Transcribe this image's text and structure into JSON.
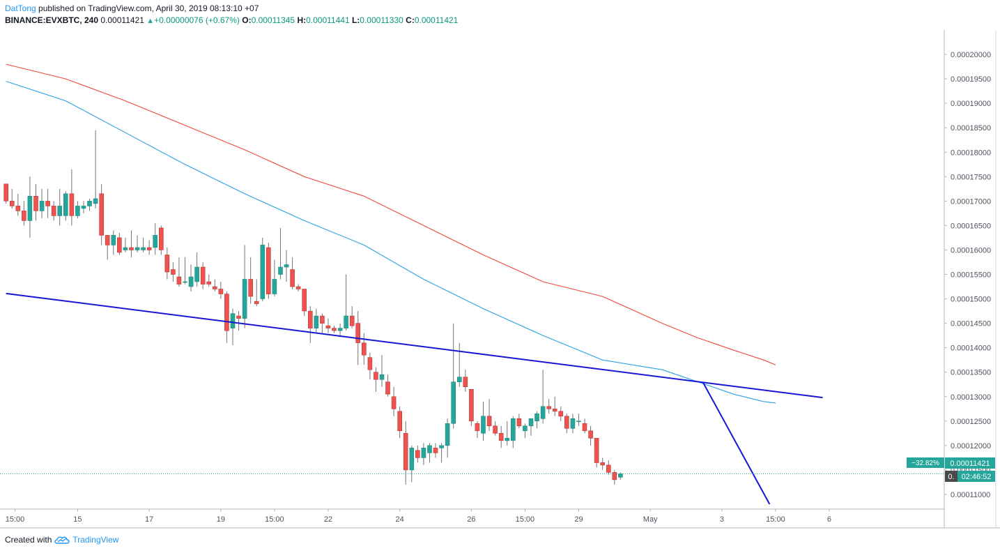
{
  "header": {
    "author": "DatTong",
    "published_text": "published on TradingView.com, April 30, 2019 08:13:10 +07",
    "symbol": "BINANCE:EVXBTC, 240",
    "last_price": "0.00011421",
    "change": "+0.00000076 (+0.67%)",
    "open_label": "O:",
    "open": "0.00011345",
    "high_label": "H:",
    "high": "0.00011441",
    "low_label": "L:",
    "low": "0.00011330",
    "close_label": "C:",
    "close": "0.00011421"
  },
  "price_badges": {
    "percent": "−32.82%",
    "price": "0.00011421",
    "countdown_prefix": "0.",
    "countdown": "02:46:52"
  },
  "footer": {
    "created_with": "Created with",
    "brand": "TradingView"
  },
  "colors": {
    "up": "#26a69a",
    "down": "#ef5350",
    "ma_fast": "#29a0e6",
    "ma_slow": "#f0483c",
    "trendline": "#1515d6",
    "price_line": "#26a69a",
    "countdown_bg": "#4a4a4a"
  },
  "icons": {
    "logo": "tradingview-cloud-icon",
    "change_arrow": "up-triangle-icon"
  },
  "chart_data": {
    "type": "candlestick",
    "timeframe": "240",
    "ylim": [
      0.000107,
      0.000205
    ],
    "y_ticks": [
      "0.00011000",
      "0.00011500",
      "0.00012000",
      "0.00012500",
      "0.00013000",
      "0.00013500",
      "0.00014000",
      "0.00014500",
      "0.00015000",
      "0.00015500",
      "0.00016000",
      "0.00016500",
      "0.00017000",
      "0.00017500",
      "0.00018000",
      "0.00018500",
      "0.00019000",
      "0.00019500",
      "0.00020000"
    ],
    "x_ticks": [
      {
        "label": "15:00",
        "bar": 1.5
      },
      {
        "label": "15",
        "bar": 12
      },
      {
        "label": "17",
        "bar": 24
      },
      {
        "label": "19",
        "bar": 36
      },
      {
        "label": "15:00",
        "bar": 45
      },
      {
        "label": "22",
        "bar": 54
      },
      {
        "label": "24",
        "bar": 66
      },
      {
        "label": "26",
        "bar": 78
      },
      {
        "label": "15:00",
        "bar": 87
      },
      {
        "label": "29",
        "bar": 96
      },
      {
        "label": "May",
        "bar": 108
      },
      {
        "label": "3",
        "bar": 120
      },
      {
        "label": "15:00",
        "bar": 129
      },
      {
        "label": "6",
        "bar": 138
      }
    ],
    "candles": [
      [
        0.0001735,
        0.0001735,
        0.0001695,
        0.00017
      ],
      [
        0.00017,
        0.0001725,
        0.0001685,
        0.000169
      ],
      [
        0.000169,
        0.0001715,
        0.000167,
        0.000168
      ],
      [
        0.000168,
        0.00017,
        0.000165,
        0.000166
      ],
      [
        0.000166,
        0.000175,
        0.0001625,
        0.000171
      ],
      [
        0.000171,
        0.0001735,
        0.000166,
        0.000168
      ],
      [
        0.000168,
        0.0001725,
        0.0001665,
        0.00017
      ],
      [
        0.00017,
        0.0001725,
        0.0001665,
        0.000169
      ],
      [
        0.000169,
        0.00017,
        0.000166,
        0.000167
      ],
      [
        0.000167,
        0.0001725,
        0.000165,
        0.000169
      ],
      [
        0.000167,
        0.000172,
        0.000166,
        0.0001715
      ],
      [
        0.0001715,
        0.0001765,
        0.000165,
        0.000167
      ],
      [
        0.000167,
        0.00017,
        0.0001665,
        0.000169
      ],
      [
        0.0001685,
        0.00017,
        0.0001675,
        0.000169
      ],
      [
        0.000169,
        0.0001705,
        0.000168,
        0.00017
      ],
      [
        0.0001695,
        0.0001845,
        0.0001685,
        0.0001705
      ],
      [
        0.0001715,
        0.0001735,
        0.000161,
        0.000163
      ],
      [
        0.000163,
        0.000163,
        0.000158,
        0.000161
      ],
      [
        0.000161,
        0.000164,
        0.000159,
        0.000163
      ],
      [
        0.0001625,
        0.0001635,
        0.000159,
        0.0001595
      ],
      [
        0.00016,
        0.0001625,
        0.0001595,
        0.0001605
      ],
      [
        0.0001605,
        0.000164,
        0.0001585,
        0.00016
      ],
      [
        0.00016,
        0.000163,
        0.0001595,
        0.0001605
      ],
      [
        0.00016,
        0.0001625,
        0.0001595,
        0.0001605
      ],
      [
        0.0001605,
        0.000162,
        0.000159,
        0.00016
      ],
      [
        0.0001605,
        0.0001655,
        0.000159,
        0.000163
      ],
      [
        0.0001645,
        0.000165,
        0.000159,
        0.00016
      ],
      [
        0.000159,
        0.0001605,
        0.000154,
        0.0001555
      ],
      [
        0.000156,
        0.0001575,
        0.0001535,
        0.000155
      ],
      [
        0.0001545,
        0.0001585,
        0.0001525,
        0.000153
      ],
      [
        0.0001535,
        0.0001585,
        0.000153,
        0.0001535
      ],
      [
        0.0001525,
        0.000157,
        0.0001515,
        0.0001545
      ],
      [
        0.0001535,
        0.0001595,
        0.0001525,
        0.0001565
      ],
      [
        0.0001565,
        0.0001575,
        0.000152,
        0.000153
      ],
      [
        0.0001535,
        0.000155,
        0.0001525,
        0.000153
      ],
      [
        0.0001525,
        0.000154,
        0.0001515,
        0.000152
      ],
      [
        0.000152,
        0.0001535,
        0.00015,
        0.000151
      ],
      [
        0.000151,
        0.0001515,
        0.000141,
        0.0001435
      ],
      [
        0.000144,
        0.000148,
        0.0001405,
        0.000147
      ],
      [
        0.0001465,
        0.0001475,
        0.0001435,
        0.000146
      ],
      [
        0.000146,
        0.000161,
        0.000144,
        0.000154
      ],
      [
        0.000154,
        0.0001585,
        0.000149,
        0.0001505
      ],
      [
        0.0001495,
        0.000154,
        0.0001485,
        0.000149
      ],
      [
        0.00015,
        0.0001625,
        0.0001495,
        0.000161
      ],
      [
        0.0001605,
        0.0001615,
        0.00015,
        0.000151
      ],
      [
        0.000151,
        0.000158,
        0.0001505,
        0.000154
      ],
      [
        0.000155,
        0.0001645,
        0.000154,
        0.0001565
      ],
      [
        0.0001565,
        0.00016,
        0.0001535,
        0.000157
      ],
      [
        0.000156,
        0.0001585,
        0.000152,
        0.0001525
      ],
      [
        0.0001525,
        0.000153,
        0.0001515,
        0.000152
      ],
      [
        0.000152,
        0.000152,
        0.0001465,
        0.0001475
      ],
      [
        0.0001475,
        0.0001485,
        0.000141,
        0.000144
      ],
      [
        0.000144,
        0.000148,
        0.000143,
        0.0001465
      ],
      [
        0.0001465,
        0.000147,
        0.000143,
        0.000145
      ],
      [
        0.0001445,
        0.000146,
        0.000143,
        0.000144
      ],
      [
        0.000144,
        0.0001445,
        0.000143,
        0.0001435
      ],
      [
        0.0001435,
        0.000145,
        0.0001425,
        0.000144
      ],
      [
        0.000144,
        0.000155,
        0.0001435,
        0.0001465
      ],
      [
        0.0001465,
        0.0001485,
        0.000144,
        0.0001445
      ],
      [
        0.000145,
        0.0001475,
        0.0001365,
        0.000141
      ],
      [
        0.000141,
        0.000143,
        0.0001365,
        0.0001385
      ],
      [
        0.000138,
        0.000139,
        0.0001335,
        0.0001355
      ],
      [
        0.000135,
        0.000136,
        0.000131,
        0.0001335
      ],
      [
        0.0001335,
        0.0001385,
        0.000132,
        0.0001345
      ],
      [
        0.000133,
        0.0001345,
        0.00013,
        0.0001305
      ],
      [
        0.00013,
        0.000132,
        0.000126,
        0.0001275
      ],
      [
        0.000127,
        0.000128,
        0.0001215,
        0.000123
      ],
      [
        0.0001225,
        0.000125,
        0.000112,
        0.000115
      ],
      [
        0.000115,
        0.00012,
        0.0001125,
        0.0001195
      ],
      [
        0.000119,
        0.00012,
        0.0001165,
        0.0001175
      ],
      [
        0.0001175,
        0.0001205,
        0.000116,
        0.0001195
      ],
      [
        0.0001185,
        0.0001205,
        0.0001165,
        0.00012
      ],
      [
        0.0001195,
        0.0001205,
        0.0001175,
        0.0001185
      ],
      [
        0.0001195,
        0.0001205,
        0.0001165,
        0.00012
      ],
      [
        0.00012,
        0.0001255,
        0.0001175,
        0.0001245
      ],
      [
        0.0001245,
        0.000145,
        0.0001235,
        0.000133
      ],
      [
        0.000133,
        0.000141,
        0.000132,
        0.000134
      ],
      [
        0.000134,
        0.0001355,
        0.000131,
        0.000132
      ],
      [
        0.0001315,
        0.0001315,
        0.000124,
        0.000125
      ],
      [
        0.0001245,
        0.000125,
        0.0001215,
        0.000123
      ],
      [
        0.0001225,
        0.000129,
        0.000121,
        0.000126
      ],
      [
        0.000126,
        0.0001295,
        0.000123,
        0.000124
      ],
      [
        0.000124,
        0.000125,
        0.000122,
        0.0001225
      ],
      [
        0.0001225,
        0.000124,
        0.0001195,
        0.000121
      ],
      [
        0.000121,
        0.000125,
        0.00012,
        0.0001215
      ],
      [
        0.000121,
        0.000126,
        0.0001195,
        0.0001255
      ],
      [
        0.0001255,
        0.0001265,
        0.0001235,
        0.000124
      ],
      [
        0.000123,
        0.0001245,
        0.0001215,
        0.000124
      ],
      [
        0.000124,
        0.0001255,
        0.000122,
        0.0001255
      ],
      [
        0.000125,
        0.000127,
        0.0001235,
        0.0001265
      ],
      [
        0.0001255,
        0.0001355,
        0.0001245,
        0.000128
      ],
      [
        0.000128,
        0.0001295,
        0.0001265,
        0.0001275
      ],
      [
        0.0001275,
        0.00013,
        0.000126,
        0.000127
      ],
      [
        0.000127,
        0.000128,
        0.000125,
        0.000126
      ],
      [
        0.000126,
        0.0001265,
        0.0001225,
        0.0001235
      ],
      [
        0.0001235,
        0.0001265,
        0.0001225,
        0.0001255
      ],
      [
        0.000125,
        0.0001265,
        0.000124,
        0.000125
      ],
      [
        0.0001245,
        0.0001255,
        0.0001225,
        0.000123
      ],
      [
        0.000123,
        0.000124,
        0.00012,
        0.0001215
      ],
      [
        0.0001215,
        0.0001215,
        0.0001155,
        0.0001165
      ],
      [
        0.0001165,
        0.0001175,
        0.000115,
        0.000116
      ],
      [
        0.000116,
        0.000117,
        0.000114,
        0.0001145
      ],
      [
        0.0001145,
        0.000115,
        0.000112,
        0.000113
      ],
      [
        0.0001135,
        0.0001145,
        0.000113,
        0.0001142
      ]
    ],
    "ma_fast": [
      [
        0,
        0.0001945
      ],
      [
        10,
        0.0001905
      ],
      [
        20,
        0.000184
      ],
      [
        30,
        0.0001775
      ],
      [
        40,
        0.0001715
      ],
      [
        50,
        0.000166
      ],
      [
        60,
        0.000161
      ],
      [
        70,
        0.000154
      ],
      [
        80,
        0.000148
      ],
      [
        90,
        0.0001425
      ],
      [
        100,
        0.0001375
      ],
      [
        110,
        0.0001355
      ],
      [
        116,
        0.000133
      ],
      [
        122,
        0.0001305
      ],
      [
        127,
        0.000129
      ],
      [
        129,
        0.0001287
      ]
    ],
    "ma_slow": [
      [
        0,
        0.000198
      ],
      [
        10,
        0.000195
      ],
      [
        20,
        0.0001905
      ],
      [
        30,
        0.0001855
      ],
      [
        40,
        0.0001805
      ],
      [
        50,
        0.000175
      ],
      [
        60,
        0.000171
      ],
      [
        70,
        0.000165
      ],
      [
        80,
        0.000159
      ],
      [
        90,
        0.0001535
      ],
      [
        100,
        0.0001505
      ],
      [
        110,
        0.000145
      ],
      [
        116,
        0.000142
      ],
      [
        122,
        0.0001395
      ],
      [
        127,
        0.0001375
      ],
      [
        129,
        0.0001365
      ]
    ],
    "trendlines": [
      {
        "name": "descending-support",
        "from": [
          0.0,
          0.0001511
        ],
        "to": [
          136.9,
          0.0001298
        ]
      },
      {
        "name": "steep-down",
        "from": [
          116.8,
          0.000133
        ],
        "to": [
          128.0,
          0.000108
        ]
      }
    ],
    "last_close": 0.00011421
  }
}
